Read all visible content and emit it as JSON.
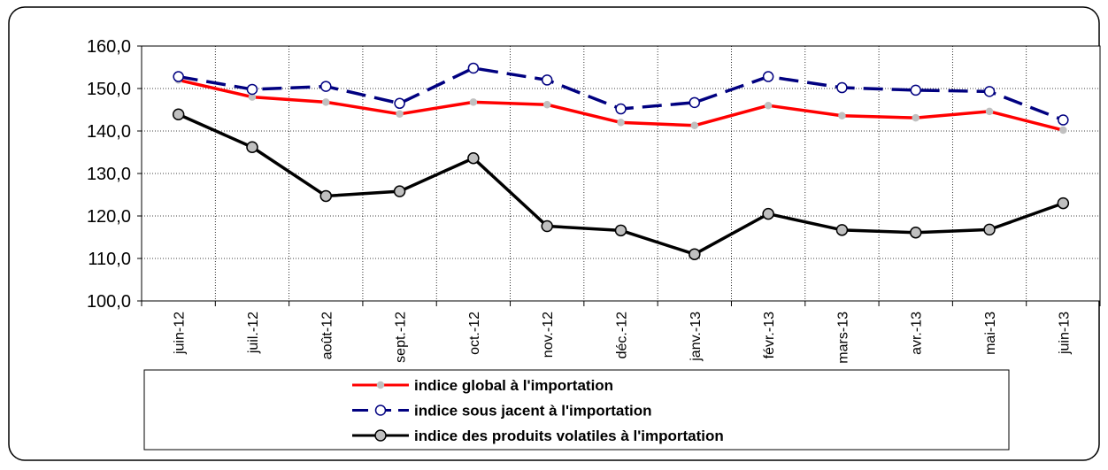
{
  "chart_data": {
    "type": "line",
    "categories": [
      "juin-12",
      "juil.-12",
      "août-12",
      "sept.-12",
      "oct.-12",
      "nov.-12",
      "déc.-12",
      "janv.-13",
      "févr.-13",
      "mars-13",
      "avr.-13",
      "mai-13",
      "juin-13"
    ],
    "series": [
      {
        "name": "indice global à l'importation",
        "color": "#ff0000",
        "values": [
          152.0,
          148.0,
          146.8,
          144.0,
          146.8,
          146.2,
          142.0,
          141.3,
          146.0,
          143.6,
          143.1,
          144.6,
          140.2
        ]
      },
      {
        "name": "indice sous jacent à l'importation",
        "color": "#000080",
        "values": [
          152.8,
          149.8,
          150.5,
          146.5,
          154.8,
          152.0,
          145.2,
          146.7,
          152.8,
          150.2,
          149.6,
          149.3,
          142.6
        ]
      },
      {
        "name": "indice des produits volatiles à l'importation",
        "color": "#000000",
        "values": [
          143.9,
          136.2,
          124.7,
          125.8,
          133.6,
          117.6,
          116.6,
          111.0,
          120.5,
          116.7,
          116.1,
          116.8,
          123.0
        ]
      }
    ],
    "ylim": [
      100,
      160
    ],
    "yticks": [
      {
        "value": 100,
        "label": "100,0"
      },
      {
        "value": 110,
        "label": "110,0"
      },
      {
        "value": 120,
        "label": "120,0"
      },
      {
        "value": 130,
        "label": "130,0"
      },
      {
        "value": 140,
        "label": "140,0"
      },
      {
        "value": 150,
        "label": "150,0"
      },
      {
        "value": 160,
        "label": "160,0"
      }
    ],
    "grid": true
  }
}
